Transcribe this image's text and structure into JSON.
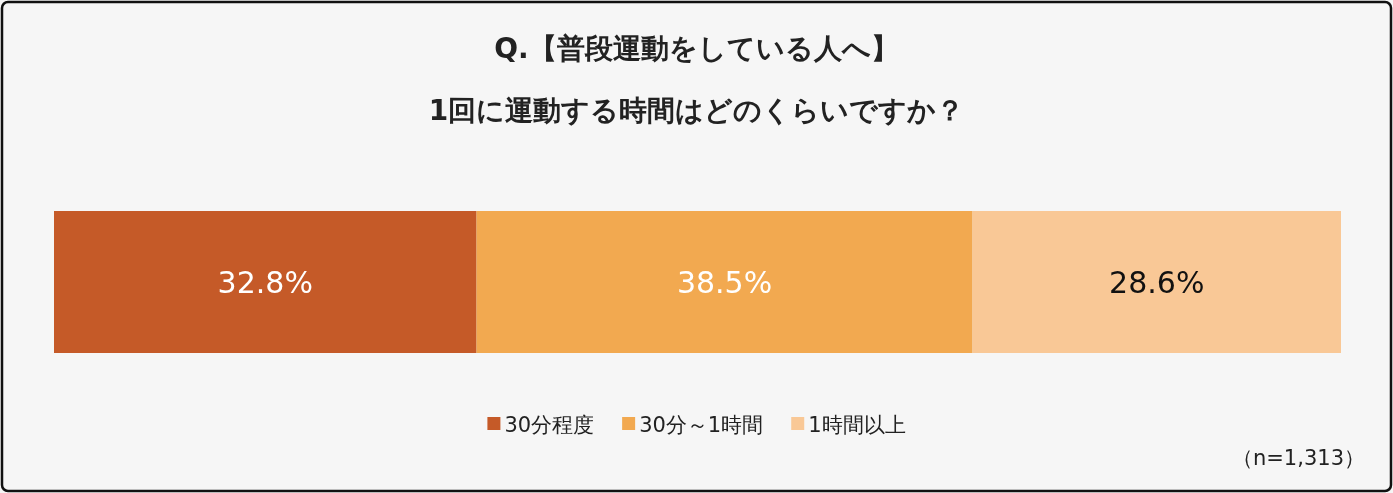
{
  "chart_data": {
    "type": "bar",
    "title": "Q.【普段運動をしている人へ】",
    "subtitle": "1回に運動する時間はどのくらいですか？",
    "orientation": "horizontal",
    "stacked": true,
    "categories": [
      null
    ],
    "legend": "bottom",
    "series": [
      {
        "name": "30分程度",
        "color": "#c55a28",
        "values": [
          32.8
        ],
        "value_labels": [
          "32.8%"
        ]
      },
      {
        "name": "30分～1時間",
        "color": "#f2a950",
        "values": [
          38.5
        ],
        "value_labels": [
          "38.5%"
        ]
      },
      {
        "name": "1時間以上",
        "color": "#f9c896",
        "values": [
          28.6
        ],
        "value_labels": [
          "28.6%"
        ]
      }
    ],
    "annotations": [
      "（n=1,313）"
    ]
  }
}
